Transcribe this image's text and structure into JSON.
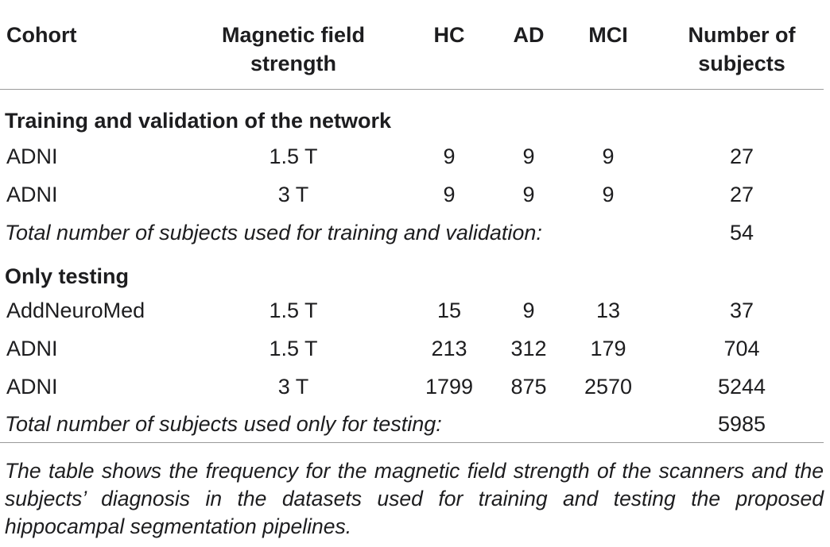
{
  "table": {
    "headers": {
      "cohort": "Cohort",
      "field_line1": "Magnetic field",
      "field_line2": "strength",
      "hc": "HC",
      "ad": "AD",
      "mci": "MCI",
      "num_line1": "Number of",
      "num_line2": "subjects"
    },
    "sections": [
      {
        "title": "Training and validation of the network",
        "rows": [
          {
            "cohort": "ADNI",
            "field": "1.5 T",
            "hc": "9",
            "ad": "9",
            "mci": "9",
            "num": "27"
          },
          {
            "cohort": "ADNI",
            "field": "3 T",
            "hc": "9",
            "ad": "9",
            "mci": "9",
            "num": "27"
          }
        ],
        "total_label": "Total number of subjects used for training and validation:",
        "total_value": "54"
      },
      {
        "title": "Only testing",
        "rows": [
          {
            "cohort": "AddNeuroMed",
            "field": "1.5 T",
            "hc": "15",
            "ad": "9",
            "mci": "13",
            "num": "37"
          },
          {
            "cohort": "ADNI",
            "field": "1.5 T",
            "hc": "213",
            "ad": "312",
            "mci": "179",
            "num": "704"
          },
          {
            "cohort": "ADNI",
            "field": "3 T",
            "hc": "1799",
            "ad": "875",
            "mci": "2570",
            "num": "5244"
          }
        ],
        "total_label": "Total number of subjects used only for testing:",
        "total_value": "5985"
      }
    ]
  },
  "footnote": "The table shows the frequency for the magnetic field strength of the scanners and the subjects’ diagnosis in the datasets used for training and testing the proposed hippocampal segmentation pipelines."
}
